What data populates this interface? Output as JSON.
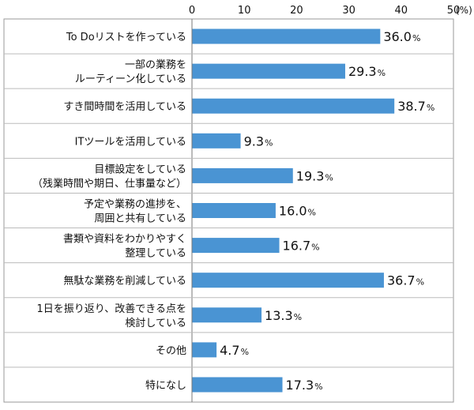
{
  "chart_data": {
    "type": "bar",
    "orientation": "horizontal",
    "unit": "(%)",
    "xlim": [
      0,
      50
    ],
    "ticks": [
      "0",
      "10",
      "20",
      "30",
      "40",
      "50"
    ],
    "bar_color": "#4a94d3",
    "grid": false,
    "categories": [
      [
        "To Doリストを作っている"
      ],
      [
        "一部の業務を",
        "ルーティーン化している"
      ],
      [
        "すき間時間を活用している"
      ],
      [
        "ITツールを活用している"
      ],
      [
        "目標設定をしている",
        "（残業時間や期日、仕事量など）"
      ],
      [
        "予定や業務の進捗を、",
        "周囲と共有している"
      ],
      [
        "書類や資料をわかりやすく",
        "整理している"
      ],
      [
        "無駄な業務を削減している"
      ],
      [
        "1日を振り返り、改善できる点を",
        "検討している"
      ],
      [
        "その他"
      ],
      [
        "特になし"
      ]
    ],
    "values": [
      36.0,
      29.3,
      38.7,
      9.3,
      19.3,
      16.0,
      16.7,
      36.7,
      13.3,
      4.7,
      17.3
    ],
    "value_labels": [
      "36.0",
      "29.3",
      "38.7",
      "9.3",
      "19.3",
      "16.0",
      "16.7",
      "36.7",
      "13.3",
      "4.7",
      "17.3"
    ],
    "value_suffix": "%"
  }
}
